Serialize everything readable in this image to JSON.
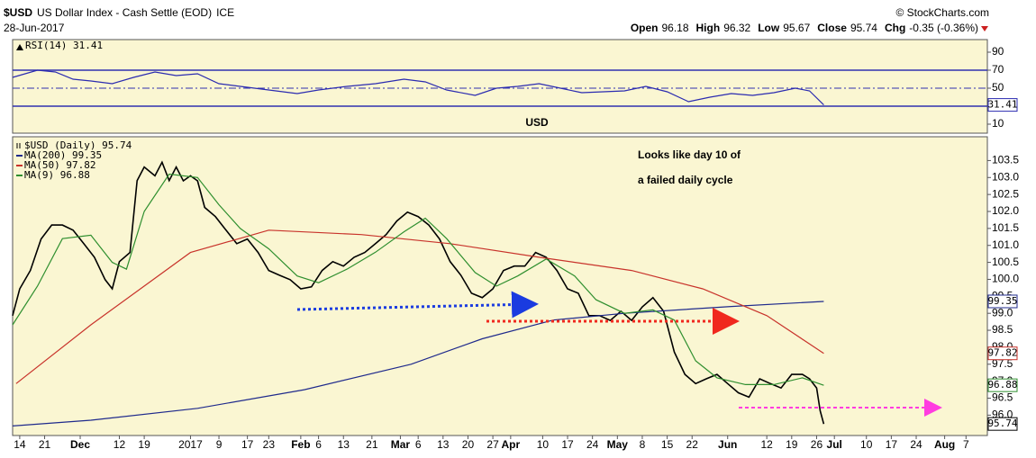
{
  "header": {
    "symbol": "$USD",
    "name": "US Dollar Index - Cash Settle (EOD)",
    "exchange": "ICE",
    "credit": "© StockCharts.com",
    "date": "28-Jun-2017",
    "quote": [
      {
        "label": "Open",
        "value": "96.18"
      },
      {
        "label": "High",
        "value": "96.32"
      },
      {
        "label": "Low",
        "value": "95.67"
      },
      {
        "label": "Close",
        "value": "95.74"
      },
      {
        "label": "Chg",
        "value": "-0.35 (-0.36%)"
      }
    ]
  },
  "chart_data": [
    {
      "type": "line",
      "title": "RSI(14) 31.41",
      "watermark": "USD",
      "xlim": [
        -2,
        272
      ],
      "ylim": [
        0,
        104
      ],
      "yticks": [
        10,
        50,
        70,
        90
      ],
      "reference_lines": [
        {
          "value": 70,
          "style": "solid"
        },
        {
          "value": 50,
          "style": "dashdot"
        },
        {
          "value": 30,
          "style": "solid"
        }
      ],
      "series": [
        {
          "name": "RSI(14)",
          "color": "#2b2bb0",
          "x": [
            -2,
            5,
            10,
            15,
            20,
            26,
            32,
            38,
            44,
            50,
            56,
            62,
            70,
            78,
            84,
            92,
            100,
            108,
            114,
            120,
            128,
            134,
            140,
            146,
            152,
            158,
            164,
            170,
            176,
            182,
            188,
            194,
            200,
            206,
            212,
            218,
            222,
            226
          ],
          "values": [
            62,
            70,
            68,
            60,
            58,
            55,
            62,
            68,
            64,
            66,
            55,
            52,
            48,
            44,
            48,
            52,
            55,
            60,
            57,
            48,
            42,
            50,
            52,
            55,
            50,
            45,
            46,
            47,
            52,
            46,
            35,
            40,
            44,
            42,
            45,
            50,
            47,
            31.41
          ]
        }
      ]
    },
    {
      "type": "line",
      "xlim": [
        -2,
        272
      ],
      "ylim": [
        95.4,
        104.2
      ],
      "yticks": [
        {
          "value": 96,
          "label": "96.0"
        },
        96.5,
        {
          "value": 97,
          "label": "97.0"
        },
        97.5,
        {
          "value": 98,
          "label": "98.0"
        },
        98.5,
        {
          "value": 99,
          "label": "99.0"
        },
        99.5,
        {
          "value": 100,
          "label": "100.0"
        },
        100.5,
        {
          "value": 101,
          "label": "101.0"
        },
        101.5,
        {
          "value": 102,
          "label": "102.0"
        },
        102.5,
        {
          "value": 103,
          "label": "103.0"
        },
        103.5
      ],
      "xticks": [
        {
          "value": 0,
          "label": "14"
        },
        {
          "value": 7,
          "label": "21"
        },
        {
          "value": 17,
          "label": "Dec"
        },
        {
          "value": 28,
          "label": "12"
        },
        {
          "value": 35,
          "label": "19"
        },
        {
          "value": 48,
          "label": "2017"
        },
        {
          "value": 56,
          "label": "9"
        },
        {
          "value": 64,
          "label": "17"
        },
        {
          "value": 70,
          "label": "23"
        },
        {
          "value": 79,
          "label": "Feb"
        },
        {
          "value": 84,
          "label": "6"
        },
        {
          "value": 91,
          "label": "13"
        },
        {
          "value": 99,
          "label": "21"
        },
        {
          "value": 107,
          "label": "Mar"
        },
        {
          "value": 112,
          "label": "6"
        },
        {
          "value": 119,
          "label": "13"
        },
        {
          "value": 126,
          "label": "20"
        },
        {
          "value": 133,
          "label": "27"
        },
        {
          "value": 138,
          "label": "Apr"
        },
        {
          "value": 147,
          "label": "10"
        },
        {
          "value": 154,
          "label": "17"
        },
        {
          "value": 161,
          "label": "24"
        },
        {
          "value": 168,
          "label": "May"
        },
        {
          "value": 175,
          "label": "8"
        },
        {
          "value": 182,
          "label": "15"
        },
        {
          "value": 189,
          "label": "22"
        },
        {
          "value": 199,
          "label": "Jun"
        },
        {
          "value": 210,
          "label": "12"
        },
        {
          "value": 217,
          "label": "19"
        },
        {
          "value": 224,
          "label": "26"
        },
        {
          "value": 229,
          "label": "Jul"
        },
        {
          "value": 238,
          "label": "10"
        },
        {
          "value": 245,
          "label": "17"
        },
        {
          "value": 252,
          "label": "24"
        },
        {
          "value": 260,
          "label": "Aug"
        },
        {
          "value": 266,
          "label": "7"
        }
      ],
      "annotations": [
        "Looks like day 10 of",
        "a failed daily cycle"
      ],
      "series": [
        {
          "name": "$USD (Daily) 95.74",
          "color": "#000000",
          "x": [
            -2,
            0,
            3,
            6,
            9,
            12,
            15,
            18,
            21,
            24,
            26,
            28,
            31,
            33,
            35,
            38,
            40,
            42,
            44,
            46,
            48,
            50,
            52,
            55,
            58,
            61,
            64,
            67,
            70,
            73,
            76,
            79,
            82,
            85,
            88,
            91,
            94,
            97,
            100,
            103,
            106,
            109,
            112,
            115,
            118,
            121,
            124,
            127,
            130,
            133,
            136,
            139,
            142,
            145,
            148,
            151,
            154,
            157,
            160,
            163,
            166,
            169,
            172,
            175,
            178,
            181,
            184,
            187,
            190,
            193,
            196,
            199,
            202,
            205,
            208,
            211,
            214,
            217,
            220,
            222,
            224,
            225,
            226
          ],
          "values": [
            98.93,
            99.72,
            100.26,
            101.19,
            101.6,
            101.6,
            101.45,
            101.05,
            100.65,
            99.99,
            99.72,
            100.52,
            100.79,
            102.91,
            103.31,
            103.05,
            103.45,
            102.91,
            103.31,
            102.9,
            103.05,
            102.9,
            102.12,
            101.85,
            101.45,
            101.05,
            101.19,
            100.79,
            100.26,
            100.12,
            99.99,
            99.72,
            99.78,
            100.26,
            100.52,
            100.39,
            100.65,
            100.79,
            101.05,
            101.32,
            101.72,
            101.98,
            101.85,
            101.6,
            101.19,
            100.52,
            100.12,
            99.59,
            99.46,
            99.72,
            100.26,
            100.39,
            100.39,
            100.79,
            100.65,
            100.26,
            99.72,
            99.59,
            98.93,
            98.93,
            98.79,
            99.06,
            98.79,
            99.19,
            99.46,
            99.06,
            97.86,
            97.2,
            96.93,
            97.07,
            97.2,
            96.93,
            96.66,
            96.53,
            97.07,
            96.93,
            96.8,
            97.2,
            97.2,
            97.07,
            96.8,
            96.13,
            95.74
          ]
        },
        {
          "name": "MA(200) 99.35",
          "color": "#1f2a8c",
          "x": [
            -2,
            20,
            50,
            80,
            110,
            130,
            150,
            170,
            200,
            226
          ],
          "values": [
            95.68,
            95.85,
            96.2,
            96.75,
            97.5,
            98.25,
            98.8,
            99.0,
            99.2,
            99.35
          ]
        },
        {
          "name": "MA(50) 97.82",
          "color": "#c8332b",
          "x": [
            -1,
            20,
            48,
            70,
            96,
            121,
            146,
            172,
            192,
            210,
            226
          ],
          "values": [
            96.93,
            98.66,
            100.79,
            101.45,
            101.32,
            101.05,
            100.65,
            100.26,
            99.72,
            98.93,
            97.82
          ]
        },
        {
          "name": "MA(9) 96.88",
          "color": "#2f8f2f",
          "x": [
            -2,
            5,
            12,
            20,
            26,
            30,
            35,
            42,
            50,
            56,
            62,
            70,
            78,
            84,
            92,
            100,
            108,
            114,
            120,
            128,
            134,
            140,
            148,
            156,
            162,
            170,
            178,
            184,
            190,
            196,
            204,
            212,
            220,
            226
          ],
          "values": [
            98.66,
            99.8,
            101.2,
            101.3,
            100.5,
            100.3,
            102.0,
            103.1,
            103.0,
            102.2,
            101.5,
            100.9,
            100.1,
            99.9,
            100.3,
            100.8,
            101.4,
            101.8,
            101.2,
            100.2,
            99.8,
            100.1,
            100.6,
            100.1,
            99.4,
            99.0,
            99.1,
            98.8,
            97.6,
            97.1,
            96.9,
            96.9,
            97.1,
            96.88
          ]
        }
      ]
    }
  ]
}
